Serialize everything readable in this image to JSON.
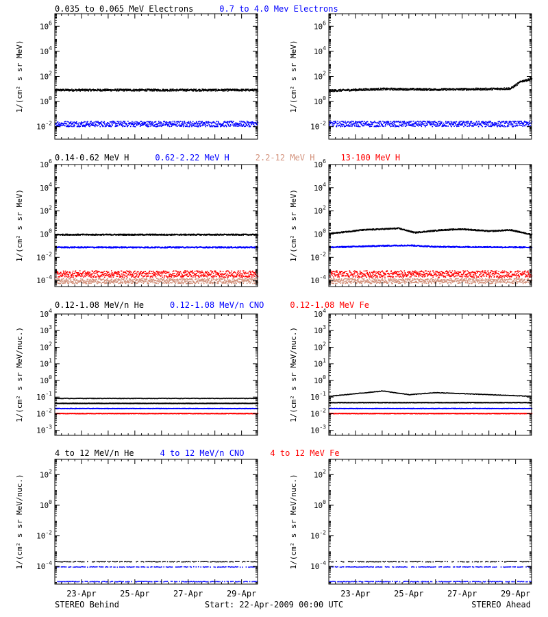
{
  "footer": {
    "left": "STEREO Behind",
    "center": "Start: 22-Apr-2009 00:00 UTC",
    "right": "STEREO Ahead"
  },
  "x_ticks": [
    "23-Apr",
    "25-Apr",
    "27-Apr",
    "29-Apr"
  ],
  "chart_data": [
    {
      "type": "scatter",
      "row_title": [
        {
          "text": "0.035 to 0.065 MeV Electrons",
          "color": "#000000"
        },
        {
          "text": "0.7 to 4.0 Mev Electrons",
          "color": "#0000ff"
        }
      ],
      "ylabel": "1/(cm² s sr MeV)",
      "ylim": [
        0.001,
        10000000
      ],
      "y_ticks": [
        {
          "v": 0.01,
          "base": "10",
          "exp": "-2"
        },
        {
          "v": 1,
          "base": "10",
          "exp": "0"
        },
        {
          "v": 100,
          "base": "10",
          "exp": "2"
        },
        {
          "v": 10000,
          "base": "10",
          "exp": "4"
        },
        {
          "v": 1000000,
          "base": "10",
          "exp": "6"
        }
      ],
      "behind": [
        {
          "color": "#000000",
          "profile": [
            [
              22,
              9
            ],
            [
              29.6,
              9
            ]
          ]
        },
        {
          "color": "#0000ff",
          "profile": [
            [
              22,
              0.018
            ],
            [
              29.6,
              0.018
            ]
          ]
        }
      ],
      "ahead": [
        {
          "color": "#000000",
          "profile": [
            [
              22,
              8
            ],
            [
              24,
              11
            ],
            [
              26,
              10
            ],
            [
              28,
              11
            ],
            [
              28.8,
              12
            ],
            [
              29.2,
              45
            ],
            [
              29.6,
              70
            ]
          ]
        },
        {
          "color": "#0000ff",
          "profile": [
            [
              22,
              0.018
            ],
            [
              29.6,
              0.018
            ]
          ]
        }
      ]
    },
    {
      "type": "scatter",
      "row_title": [
        {
          "text": "0.14-0.62 MeV H",
          "color": "#000000"
        },
        {
          "text": "0.62-2.22 MeV H",
          "color": "#0000ff"
        },
        {
          "text": "2.2-12 MeV H",
          "color": "#d2907a"
        },
        {
          "text": "13-100 MeV H",
          "color": "#ff0000"
        }
      ],
      "ylabel": "1/(cm² s sr MeV)",
      "ylim": [
        3e-05,
        1000000
      ],
      "y_ticks": [
        {
          "v": 0.0001,
          "base": "10",
          "exp": "-4"
        },
        {
          "v": 0.01,
          "base": "10",
          "exp": "-2"
        },
        {
          "v": 1,
          "base": "10",
          "exp": "0"
        },
        {
          "v": 100,
          "base": "10",
          "exp": "2"
        },
        {
          "v": 10000,
          "base": "10",
          "exp": "4"
        },
        {
          "v": 1000000,
          "base": "10",
          "exp": "6"
        }
      ],
      "behind": [
        {
          "color": "#000000",
          "profile": [
            [
              22,
              1.0
            ],
            [
              29.6,
              1.0
            ]
          ]
        },
        {
          "color": "#0000ff",
          "profile": [
            [
              22,
              0.08
            ],
            [
              29.6,
              0.08
            ]
          ]
        },
        {
          "color": "#d2907a",
          "profile": [
            [
              22,
              0.0001
            ],
            [
              29.6,
              0.0001
            ]
          ]
        },
        {
          "color": "#ff0000",
          "profile": [
            [
              22,
              0.0004
            ],
            [
              29.6,
              0.0004
            ]
          ]
        }
      ],
      "ahead": [
        {
          "color": "#000000",
          "profile": [
            [
              22,
              1.2
            ],
            [
              23.2,
              2.5
            ],
            [
              24.6,
              3.5
            ],
            [
              25.2,
              1.5
            ],
            [
              26.2,
              2.5
            ],
            [
              27,
              3
            ],
            [
              28,
              2
            ],
            [
              28.8,
              2.5
            ],
            [
              29.6,
              1
            ]
          ]
        },
        {
          "color": "#0000ff",
          "profile": [
            [
              22,
              0.08
            ],
            [
              24,
              0.11
            ],
            [
              25,
              0.12
            ],
            [
              26,
              0.09
            ],
            [
              29.6,
              0.08
            ]
          ]
        },
        {
          "color": "#d2907a",
          "profile": [
            [
              22,
              0.0001
            ],
            [
              29.6,
              0.0001
            ]
          ]
        },
        {
          "color": "#ff0000",
          "profile": [
            [
              22,
              0.0004
            ],
            [
              29.6,
              0.0004
            ]
          ]
        }
      ]
    },
    {
      "type": "scatter",
      "row_title": [
        {
          "text": "0.12-1.08 MeV/n He",
          "color": "#000000"
        },
        {
          "text": "0.12-1.08 MeV/n CNO",
          "color": "#0000ff"
        },
        {
          "text": "0.12-1.08 MeV Fe",
          "color": "#ff0000"
        }
      ],
      "ylabel": "1/(cm² s sr MeV/nuc.)",
      "ylim": [
        0.0005,
        10000
      ],
      "y_ticks": [
        {
          "v": 0.001,
          "base": "10",
          "exp": "-3"
        },
        {
          "v": 0.01,
          "base": "10",
          "exp": "-2"
        },
        {
          "v": 0.1,
          "base": "10",
          "exp": "-1"
        },
        {
          "v": 1,
          "base": "10",
          "exp": "0"
        },
        {
          "v": 10,
          "base": "10",
          "exp": "1"
        },
        {
          "v": 100,
          "base": "10",
          "exp": "2"
        },
        {
          "v": 1000,
          "base": "10",
          "exp": "3"
        },
        {
          "v": 10000,
          "base": "10",
          "exp": "4"
        }
      ],
      "behind": [
        {
          "color": "#000000",
          "profile": [
            [
              22,
              0.09
            ],
            [
              29.6,
              0.09
            ]
          ]
        },
        {
          "color": "#000000",
          "profile": [
            [
              22,
              0.045
            ],
            [
              29.6,
              0.045
            ]
          ]
        },
        {
          "color": "#0000ff",
          "profile": [
            [
              22,
              0.022
            ],
            [
              29.6,
              0.022
            ]
          ]
        },
        {
          "color": "#ff0000",
          "profile": [
            [
              22,
              0.011
            ],
            [
              29.6,
              0.011
            ]
          ]
        }
      ],
      "ahead": [
        {
          "color": "#000000",
          "profile": [
            [
              22,
              0.12
            ],
            [
              24,
              0.25
            ],
            [
              25,
              0.15
            ],
            [
              26,
              0.2
            ],
            [
              29.6,
              0.12
            ]
          ]
        },
        {
          "color": "#000000",
          "profile": [
            [
              22,
              0.05
            ],
            [
              29.6,
              0.05
            ]
          ]
        },
        {
          "color": "#0000ff",
          "profile": [
            [
              22,
              0.022
            ],
            [
              29.6,
              0.022
            ]
          ]
        },
        {
          "color": "#ff0000",
          "profile": [
            [
              22,
              0.011
            ],
            [
              29.6,
              0.011
            ]
          ]
        }
      ]
    },
    {
      "type": "scatter",
      "row_title": [
        {
          "text": "4 to 12 MeV/n He",
          "color": "#000000"
        },
        {
          "text": "4 to 12 MeV/n CNO",
          "color": "#0000ff"
        },
        {
          "text": "4 to 12 MeV Fe",
          "color": "#ff0000"
        }
      ],
      "ylabel": "1/(cm² s sr MeV/nuc.)",
      "ylim": [
        7e-06,
        1000
      ],
      "y_ticks": [
        {
          "v": 0.0001,
          "base": "10",
          "exp": "-4"
        },
        {
          "v": 0.01,
          "base": "10",
          "exp": "-2"
        },
        {
          "v": 1,
          "base": "10",
          "exp": "0"
        },
        {
          "v": 100,
          "base": "10",
          "exp": "2"
        }
      ],
      "behind": [
        {
          "color": "#000000",
          "profile": [
            [
              22,
              0.00022
            ],
            [
              29.6,
              0.00022
            ]
          ]
        },
        {
          "color": "#0000ff",
          "profile": [
            [
              22,
              0.0001
            ],
            [
              29.6,
              0.0001
            ]
          ]
        },
        {
          "color": "#0000ff",
          "profile": [
            [
              22,
              1.1e-05
            ],
            [
              29.6,
              1.1e-05
            ]
          ]
        }
      ],
      "ahead": [
        {
          "color": "#000000",
          "profile": [
            [
              22,
              0.00022
            ],
            [
              29.6,
              0.00022
            ]
          ]
        },
        {
          "color": "#0000ff",
          "profile": [
            [
              22,
              0.0001
            ],
            [
              29.6,
              0.0001
            ]
          ]
        },
        {
          "color": "#0000ff",
          "profile": [
            [
              22,
              1.1e-05
            ],
            [
              29.6,
              1.1e-05
            ]
          ]
        }
      ]
    }
  ]
}
